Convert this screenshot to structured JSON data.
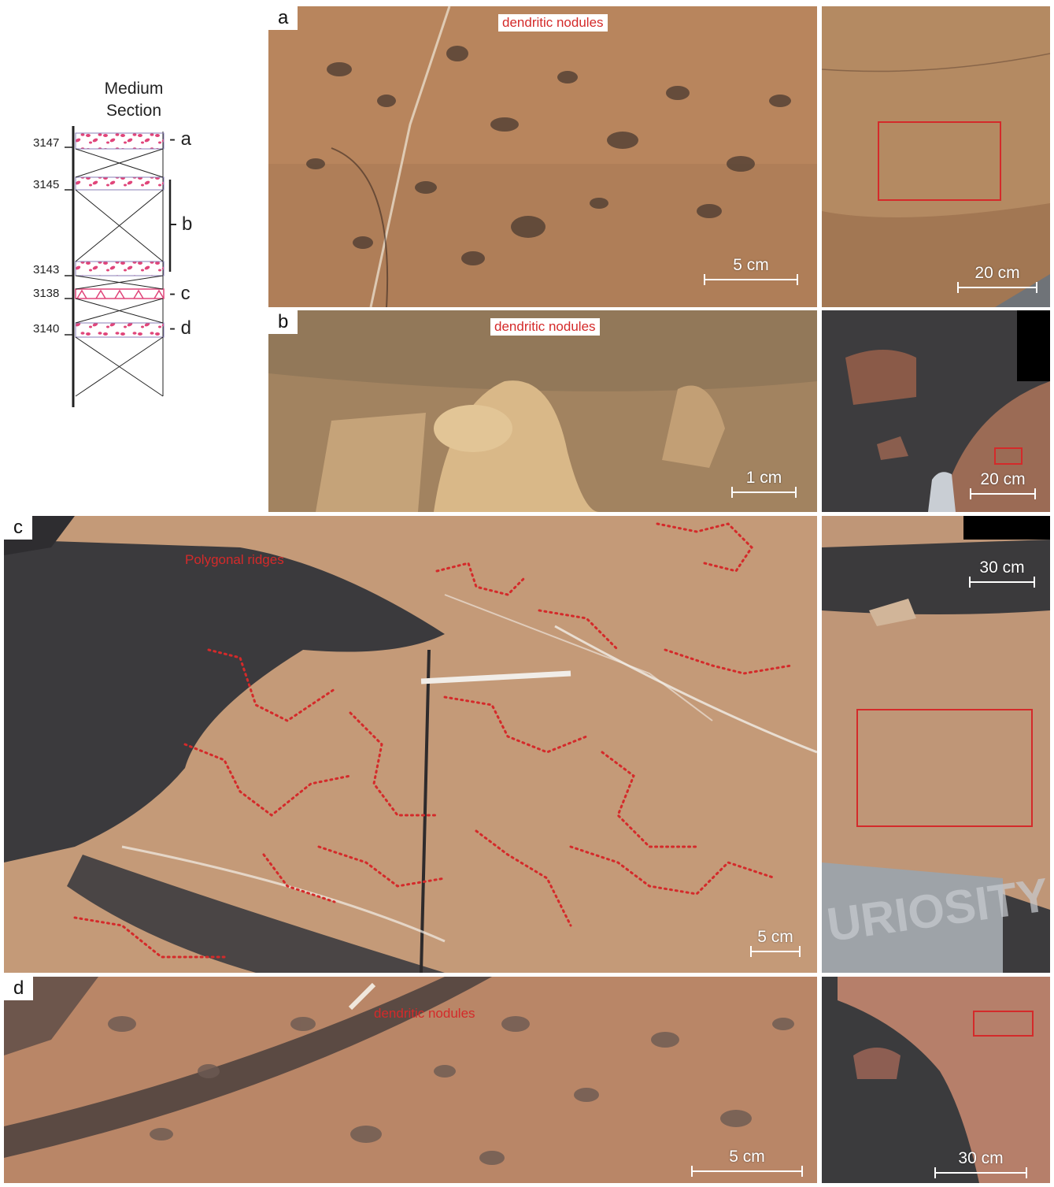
{
  "column": {
    "title_line1": "Medium",
    "title_line2": "Section",
    "depths": [
      "3147",
      "3145",
      "3143",
      "3138",
      "3140"
    ],
    "markers": [
      "- a",
      "b",
      "- c",
      "- d"
    ],
    "colors": {
      "nodule": "#e0457a",
      "line": "#222222"
    }
  },
  "panels": {
    "a": {
      "letter": "a",
      "label": "dendritic nodules",
      "scale_main": "5 cm",
      "scale_context": "20 cm"
    },
    "b": {
      "letter": "b",
      "label": "dendritic nodules",
      "scale_main": "1 cm",
      "scale_context": "20 cm"
    },
    "c": {
      "letter": "c",
      "label": "Polygonal ridges",
      "scale_main": "5 cm",
      "scale_context": "30 cm",
      "context_text": "URIOSITY"
    },
    "d": {
      "letter": "d",
      "label": "dendritic nodules",
      "scale_main": "5 cm",
      "scale_context": "30 cm"
    }
  },
  "colors": {
    "accent_red": "#d42a2a",
    "rock_tan": "#b8875f",
    "sand_dark": "#3a3a3c"
  }
}
